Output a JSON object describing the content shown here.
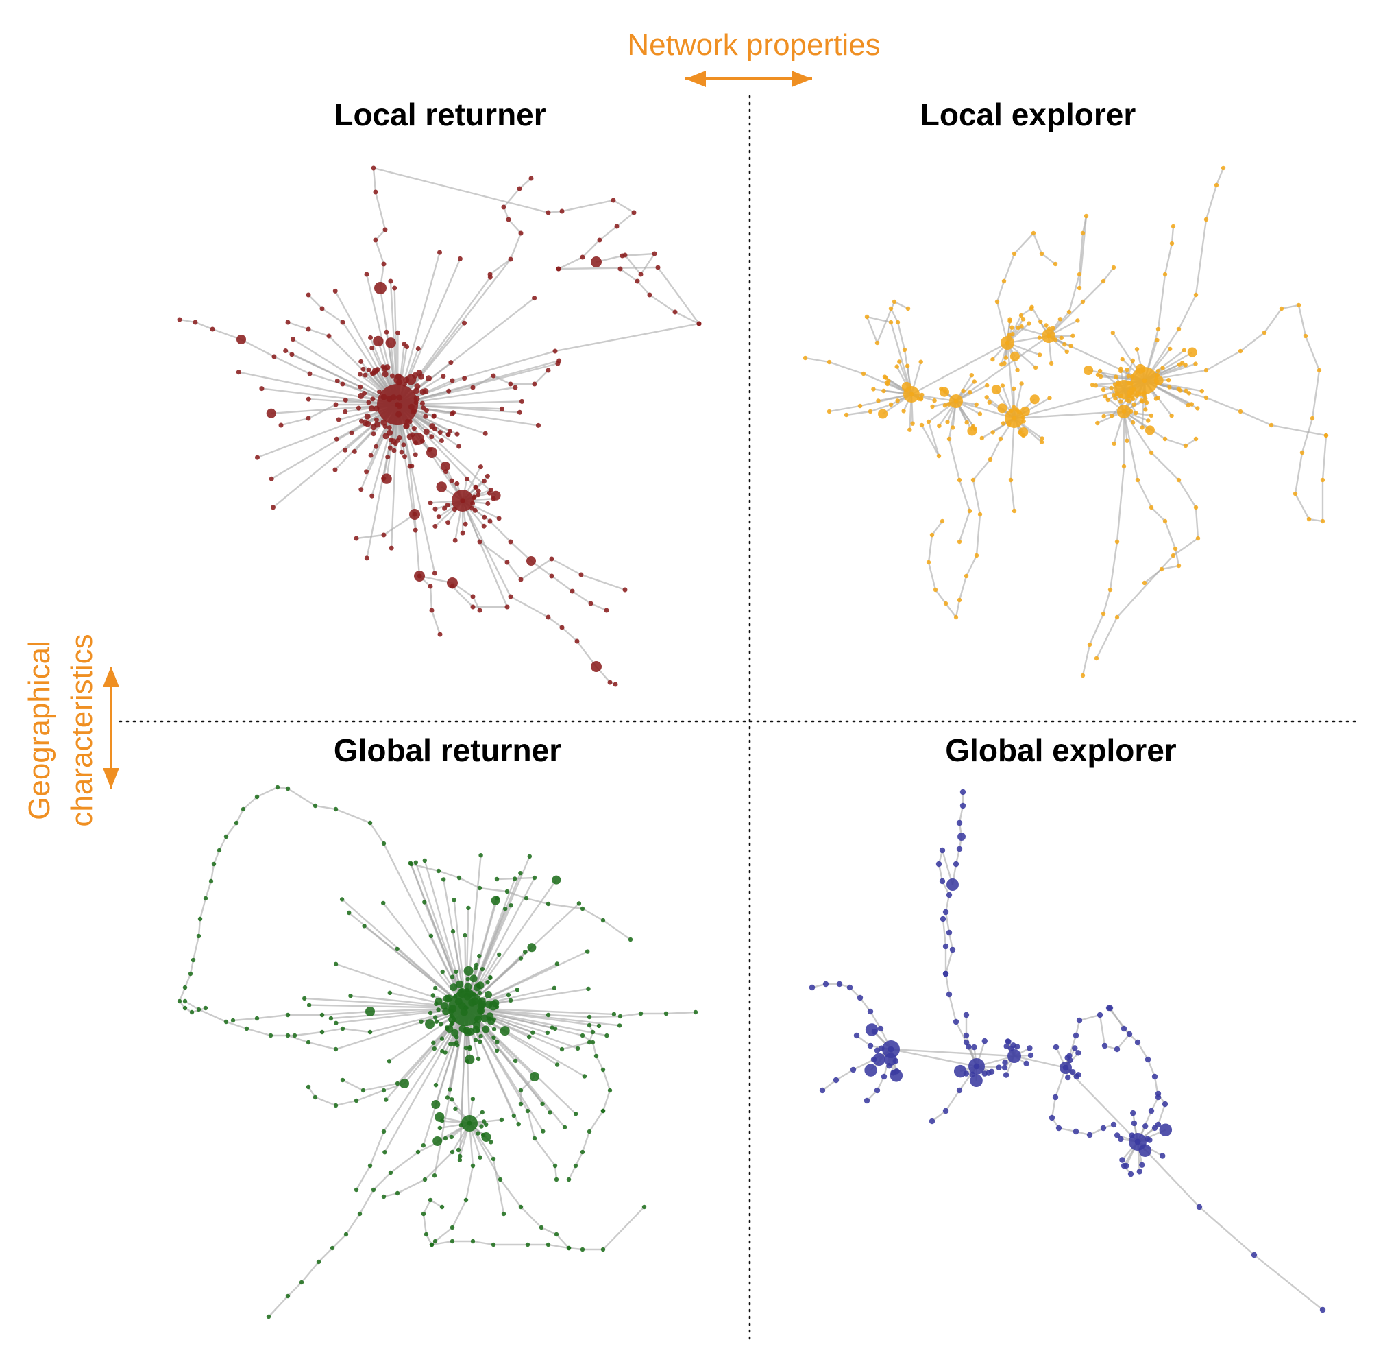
{
  "axes": {
    "horizontal_label": "Network properties",
    "vertical_label_line1": "Geographical",
    "vertical_label_line2": "characteristics",
    "accent_color": "#ef8f22"
  },
  "panels": [
    {
      "id": "local-returner",
      "title": "Local returner",
      "color": "#8b1f1f",
      "seed": 11
    },
    {
      "id": "local-explorer",
      "title": "Local explorer",
      "color": "#f2a91c",
      "seed": 23
    },
    {
      "id": "global-returner",
      "title": "Global returner",
      "color": "#1f6e1c",
      "seed": 37
    },
    {
      "id": "global-explorer",
      "title": "Global explorer",
      "color": "#3b3ba1",
      "seed": 53
    }
  ]
}
